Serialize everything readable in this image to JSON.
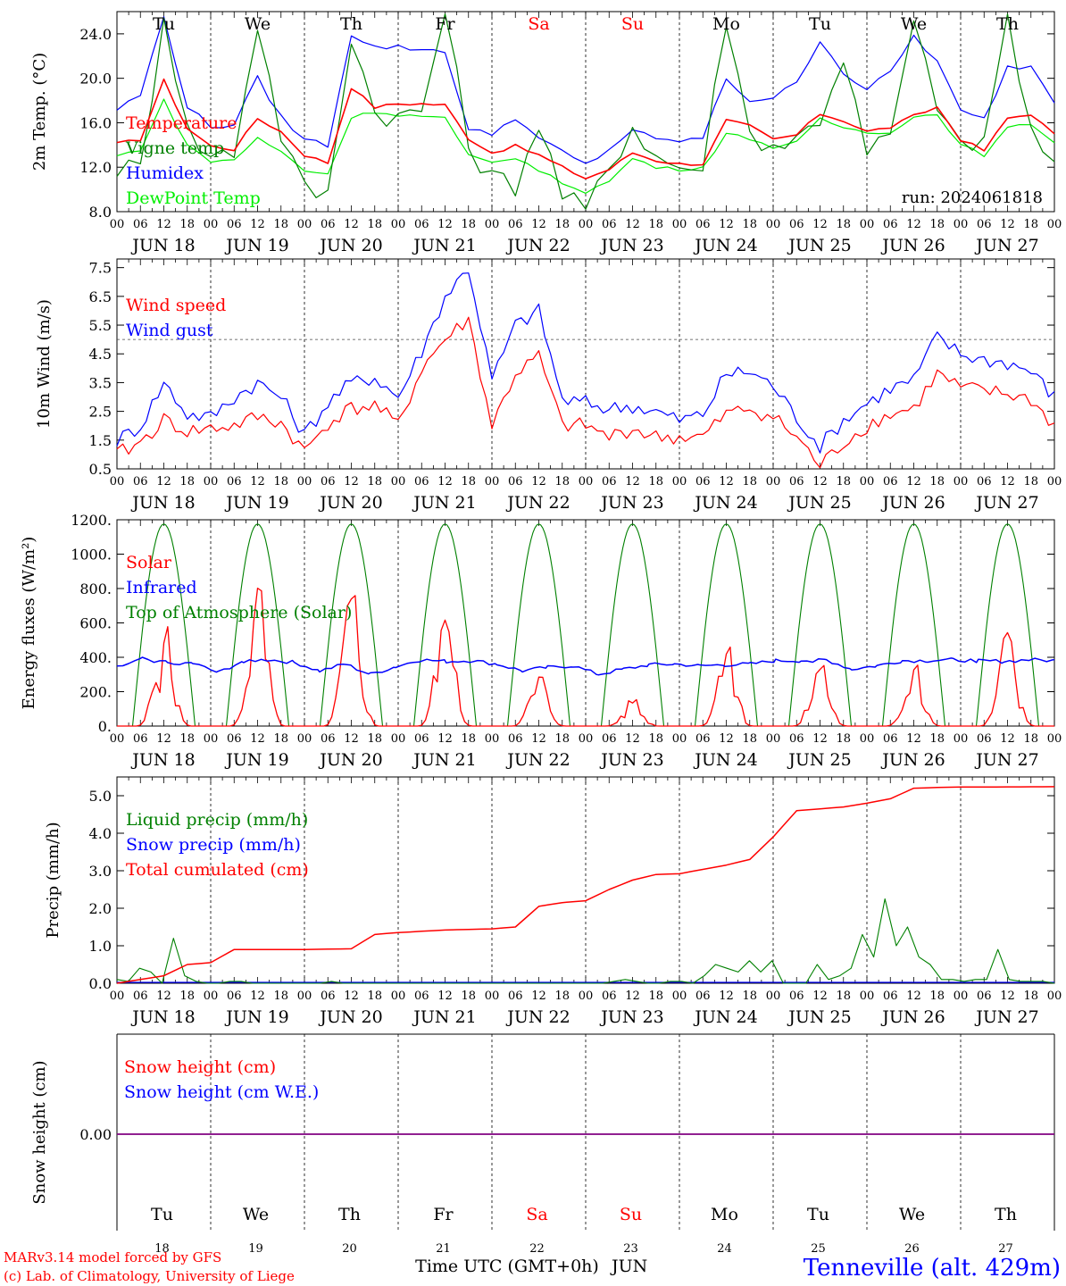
{
  "colors": {
    "temperature": "#ff0000",
    "vigne": "#008000",
    "humidex": "#0000ff",
    "dewpoint": "#00ee00",
    "snow_line": "#800080",
    "weekend": "#ff0000",
    "weekday": "#000000",
    "footer_right": "#0000ff",
    "footer_left": "#ff0000"
  },
  "x_axis": {
    "hour_labels": [
      "00",
      "06",
      "12",
      "18"
    ],
    "end_label": "00",
    "dates": [
      "JUN 18",
      "JUN 19",
      "JUN 20",
      "JUN 21",
      "JUN 22",
      "JUN 23",
      "JUN 24",
      "JUN 25",
      "JUN 26",
      "JUN 27"
    ],
    "weekdays": [
      "Tu",
      "We",
      "Th",
      "Fr",
      "Sa",
      "Su",
      "Mo",
      "Tu",
      "We",
      "Th"
    ],
    "weekend_flags": [
      false,
      false,
      false,
      false,
      true,
      true,
      false,
      false,
      false,
      false
    ],
    "day_numbers": [
      "18",
      "19",
      "20",
      "21",
      "22",
      "23",
      "24",
      "25",
      "26",
      "27"
    ],
    "month": "JUN"
  },
  "chart_data": [
    {
      "type": "line",
      "ylabel": "2m Temp. (°C)",
      "ylim": [
        8,
        26
      ],
      "yticks": [
        "8.0",
        "12.0",
        "16.0",
        "20.0",
        "24.0"
      ],
      "annotation": "run: 2024061818",
      "x_hours": [
        0,
        6,
        12,
        18,
        24,
        30,
        36,
        42,
        48,
        54,
        60,
        66,
        72,
        78,
        84,
        90,
        96,
        102,
        108,
        114,
        120,
        126,
        132,
        138,
        144,
        150,
        156,
        162,
        168,
        174,
        180,
        186,
        192,
        198,
        204,
        210,
        216,
        222,
        228,
        234,
        240
      ],
      "series": [
        {
          "name": "Temperature",
          "color_key": "temperature",
          "values": [
            14.1,
            14.5,
            19.8,
            15.5,
            13.9,
            13.6,
            16.4,
            15.2,
            13.1,
            12.4,
            19.2,
            17.4,
            17.7,
            17.7,
            17.6,
            14.6,
            13.3,
            13.9,
            13.1,
            12.0,
            11.0,
            11.8,
            13.3,
            12.6,
            12.3,
            12.3,
            16.2,
            15.7,
            14.5,
            14.9,
            16.8,
            16.2,
            15.2,
            15.6,
            16.6,
            17.4,
            14.5,
            13.5,
            16.4,
            16.8,
            14.9
          ]
        },
        {
          "name": "Vigne temp",
          "color_key": "vigne",
          "values": [
            12.0,
            11.8,
            26.0,
            15.3,
            12.9,
            13.5,
            25.0,
            15.0,
            10.0,
            9.5,
            24.0,
            17.0,
            16.5,
            17.0,
            26.0,
            14.0,
            11.0,
            10.5,
            16.0,
            9.5,
            8.0,
            12.0,
            15.8,
            13.0,
            12.0,
            12.0,
            25.5,
            15.0,
            14.0,
            14.5,
            16.5,
            22.0,
            13.0,
            15.0,
            24.5,
            18.0,
            13.5,
            14.5,
            25.5,
            15.0,
            11.5
          ]
        },
        {
          "name": "Humidex",
          "color_key": "humidex",
          "values": [
            17.2,
            18.5,
            25.5,
            17.5,
            15.6,
            15.9,
            20.0,
            16.5,
            14.5,
            14.0,
            24.0,
            22.8,
            22.8,
            22.6,
            22.5,
            15.3,
            15.0,
            16.5,
            14.5,
            13.4,
            12.2,
            13.6,
            15.4,
            14.4,
            14.4,
            14.6,
            20.0,
            18.0,
            18.3,
            19.5,
            23.5,
            20.5,
            19.0,
            20.5,
            23.8,
            21.5,
            17.0,
            16.3,
            21.0,
            21.1,
            18.0
          ]
        },
        {
          "name": "DewPoint Temp",
          "color_key": "dewpoint",
          "values": [
            13.0,
            13.6,
            18.0,
            14.0,
            12.5,
            12.7,
            14.6,
            13.4,
            11.7,
            11.4,
            16.5,
            17.0,
            16.7,
            16.6,
            16.4,
            13.0,
            12.4,
            12.9,
            11.7,
            10.6,
            9.8,
            10.7,
            12.8,
            12.0,
            11.8,
            12.0,
            15.0,
            14.6,
            13.8,
            14.2,
            16.3,
            15.6,
            15.1,
            15.2,
            16.5,
            16.8,
            14.0,
            13.1,
            15.5,
            15.9,
            14.3
          ]
        }
      ]
    },
    {
      "type": "line",
      "ylabel": "10m Wind (m/s)",
      "ylim": [
        0.5,
        7.8
      ],
      "yticks": [
        "0.5",
        "1.5",
        "2.5",
        "3.5",
        "4.5",
        "5.5",
        "6.5",
        "7.5"
      ],
      "reference_line": 5.0,
      "x_hours": [
        0,
        6,
        12,
        18,
        24,
        30,
        36,
        42,
        48,
        54,
        60,
        66,
        72,
        78,
        84,
        90,
        96,
        102,
        108,
        114,
        120,
        126,
        132,
        138,
        144,
        150,
        156,
        162,
        168,
        174,
        180,
        186,
        192,
        198,
        204,
        210,
        216,
        222,
        228,
        234,
        240
      ],
      "series": [
        {
          "name": "Wind speed",
          "color_key": "temperature",
          "values": [
            1.0,
            1.4,
            2.2,
            1.8,
            1.9,
            2.0,
            2.3,
            2.1,
            1.1,
            2.1,
            2.6,
            2.7,
            2.0,
            4.0,
            5.0,
            5.7,
            2.0,
            3.8,
            4.4,
            2.0,
            2.0,
            1.6,
            1.9,
            1.6,
            1.6,
            1.6,
            2.4,
            2.6,
            2.3,
            1.6,
            0.6,
            1.4,
            2.0,
            2.4,
            2.6,
            3.8,
            3.3,
            3.2,
            3.1,
            2.9,
            2.0
          ]
        },
        {
          "name": "Wind gust",
          "color_key": "humidex",
          "values": [
            1.5,
            2.0,
            3.5,
            2.4,
            2.3,
            3.0,
            3.5,
            3.0,
            1.7,
            2.8,
            3.5,
            3.7,
            3.0,
            4.6,
            6.5,
            7.5,
            3.6,
            5.5,
            6.0,
            2.9,
            2.8,
            2.6,
            2.7,
            2.5,
            2.2,
            2.4,
            3.8,
            3.9,
            3.4,
            2.3,
            1.3,
            2.2,
            2.8,
            3.3,
            3.6,
            5.1,
            4.5,
            4.3,
            4.2,
            3.9,
            3.0
          ]
        }
      ]
    },
    {
      "type": "line",
      "ylabel": "Energy fluxes (W/m²)",
      "ylim": [
        0,
        1200
      ],
      "yticks": [
        "0.",
        "200.",
        "400.",
        "600.",
        "800.",
        "1000.",
        "1200."
      ],
      "solar_peaks": [
        580,
        820,
        790,
        670,
        300,
        160,
        520,
        380,
        390,
        580
      ],
      "infrared_values": [
        340,
        390,
        370,
        365,
        310,
        380,
        385,
        370,
        320,
        360,
        300,
        345,
        385,
        375,
        380,
        360,
        320,
        340,
        350,
        300,
        330,
        355,
        360,
        350,
        355,
        360,
        380,
        380,
        385,
        330,
        350,
        380,
        380,
        385,
        380,
        375,
        385,
        380
      ],
      "series": [
        {
          "name": "Solar",
          "color_key": "temperature"
        },
        {
          "name": "Infrared",
          "color_key": "humidex"
        },
        {
          "name": "Top of Atmosphere (Solar)",
          "color_key": "vigne",
          "peak": 1175
        }
      ]
    },
    {
      "type": "line",
      "ylabel": "Precip (mm/h)",
      "ylim": [
        0,
        5.5
      ],
      "yticks": [
        "0.0",
        "1.0",
        "2.0",
        "3.0",
        "4.0",
        "5.0"
      ],
      "liquid_values": [
        0.1,
        0.05,
        0.4,
        0.3,
        0.0,
        1.2,
        0.2,
        0.05,
        0.0,
        0.0,
        0.05,
        0.05,
        0.0,
        0.0,
        0.0,
        0.0,
        0.0,
        0.0,
        0.0,
        0.05,
        0.0,
        0.0,
        0.0,
        0.0,
        0.0,
        0.0,
        0.0,
        0.0,
        0.0,
        0.0,
        0.0,
        0.0,
        0.0,
        0.0,
        0.0,
        0.0,
        0.0,
        0.0,
        0.0,
        0.0,
        0.0,
        0.0,
        0.0,
        0.0,
        0.05,
        0.1,
        0.05,
        0.0,
        0.0,
        0.05,
        0.05,
        0.0,
        0.2,
        0.5,
        0.4,
        0.3,
        0.6,
        0.3,
        0.6,
        0.0,
        0.0,
        0.0,
        0.5,
        0.1,
        0.2,
        0.4,
        1.3,
        0.7,
        2.25,
        1.0,
        1.5,
        0.7,
        0.5,
        0.1,
        0.1,
        0.05,
        0.1,
        0.1,
        0.9,
        0.1,
        0.05,
        0.05,
        0.05,
        0.0
      ],
      "total_x": [
        0,
        12,
        18,
        24,
        30,
        36,
        48,
        60,
        66,
        72,
        84,
        96,
        102,
        108,
        114,
        120,
        126,
        132,
        138,
        144,
        156,
        162,
        168,
        174,
        180,
        186,
        192,
        198,
        204,
        210,
        216,
        240
      ],
      "total_values": [
        0.0,
        0.2,
        0.5,
        0.55,
        0.9,
        0.9,
        0.9,
        0.92,
        1.3,
        1.35,
        1.42,
        1.45,
        1.5,
        2.05,
        2.15,
        2.2,
        2.5,
        2.75,
        2.9,
        2.92,
        3.15,
        3.3,
        3.9,
        4.6,
        4.65,
        4.7,
        4.8,
        4.92,
        5.2,
        5.22,
        5.23,
        5.24
      ],
      "series": [
        {
          "name": "Liquid precip (mm/h)",
          "color_key": "vigne"
        },
        {
          "name": "Snow precip (mm/h)",
          "color_key": "humidex"
        },
        {
          "name": "Total cumulated (cm)",
          "color_key": "temperature"
        }
      ]
    },
    {
      "type": "line",
      "ylabel": "Snow height (cm)",
      "yticks": [
        "0.00"
      ],
      "series": [
        {
          "name": "Snow height (cm)",
          "color_key": "temperature",
          "values": [
            0,
            0
          ]
        },
        {
          "name": "Snow height (cm W.E.)",
          "color_key": "humidex",
          "values": [
            0,
            0
          ]
        }
      ]
    }
  ],
  "footer": {
    "xlabel": "Time UTC (GMT+0h)",
    "location": "Tenneville (alt. 429m)",
    "credit_line1": "MARv3.14 model forced by GFS",
    "credit_line2": "(c) Lab. of Climatology, University of Liege"
  }
}
